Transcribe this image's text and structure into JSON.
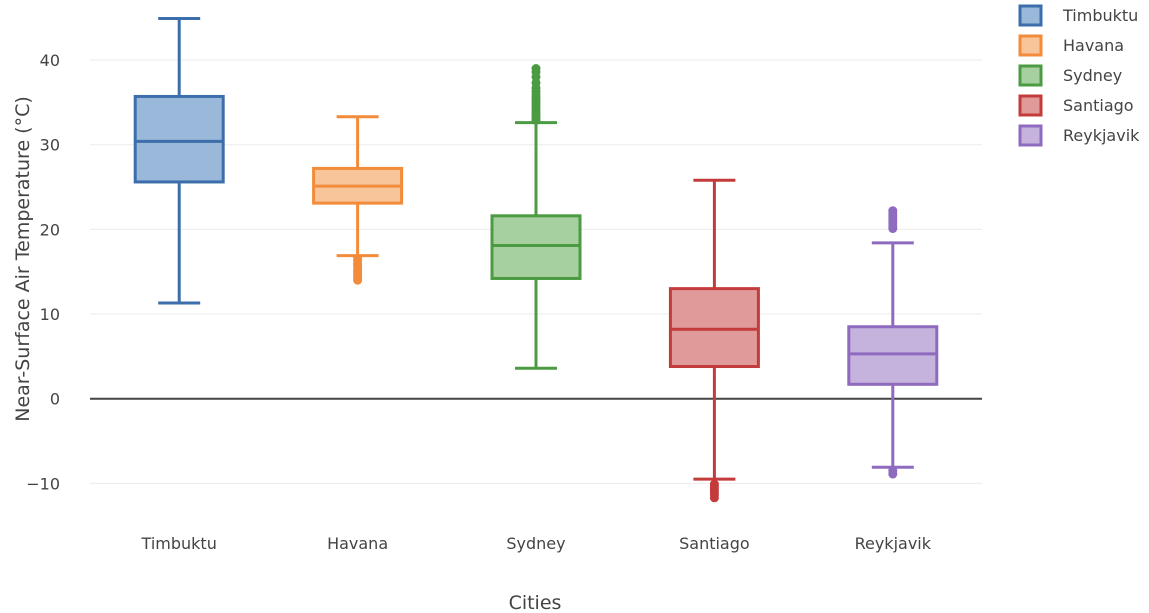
{
  "chart_data": {
    "type": "box",
    "xlabel": "Cities",
    "ylabel": "Near-Surface Air Temperature (°C)",
    "ylim": [
      -13.5,
      46.5
    ],
    "yticks": [
      -10,
      0,
      10,
      20,
      30,
      40
    ],
    "ytick_labels": [
      "−10",
      "0",
      "10",
      "20",
      "30",
      "40"
    ],
    "grid": true,
    "zero_line": true,
    "legend": "top-right",
    "series": [
      {
        "name": "Timbuktu",
        "color": "#3b6eab",
        "fill": "#9ab8d9",
        "q1": 25.6,
        "median": 30.4,
        "q3": 35.7,
        "lower_whisker": 11.3,
        "upper_whisker": 44.9,
        "outliers": []
      },
      {
        "name": "Havana",
        "color": "#f28c3a",
        "fill": "#f8c59a",
        "q1": 23.1,
        "median": 25.1,
        "q3": 27.2,
        "lower_whisker": 16.9,
        "upper_whisker": 33.3,
        "outliers": [
          16.6,
          16.3,
          15.9,
          15.6,
          15.2,
          14.9,
          14.6,
          14.3,
          14.0
        ]
      },
      {
        "name": "Sydney",
        "color": "#4b9b43",
        "fill": "#a7d0a1",
        "q1": 14.2,
        "median": 18.1,
        "q3": 21.6,
        "lower_whisker": 3.6,
        "upper_whisker": 32.6,
        "outliers": [
          32.9,
          33.2,
          33.5,
          33.8,
          34.1,
          34.4,
          34.7,
          35.0,
          35.3,
          35.6,
          35.9,
          36.3,
          36.7,
          37.3,
          38.0,
          38.6,
          39.0
        ]
      },
      {
        "name": "Santiago",
        "color": "#c43b3b",
        "fill": "#e09a9a",
        "q1": 3.8,
        "median": 8.2,
        "q3": 13.0,
        "lower_whisker": -9.5,
        "upper_whisker": 25.8,
        "outliers": [
          -10.1,
          -10.4,
          -10.7,
          -11.0,
          -11.3,
          -11.7
        ]
      },
      {
        "name": "Reykjavik",
        "color": "#8f6bbf",
        "fill": "#c5b2dd",
        "q1": 1.7,
        "median": 5.3,
        "q3": 8.5,
        "lower_whisker": -8.1,
        "upper_whisker": 18.4,
        "outliers": [
          -8.5,
          -8.9,
          20.1,
          20.4,
          20.7,
          21.0,
          21.3,
          21.6,
          21.9,
          22.2
        ]
      }
    ]
  }
}
